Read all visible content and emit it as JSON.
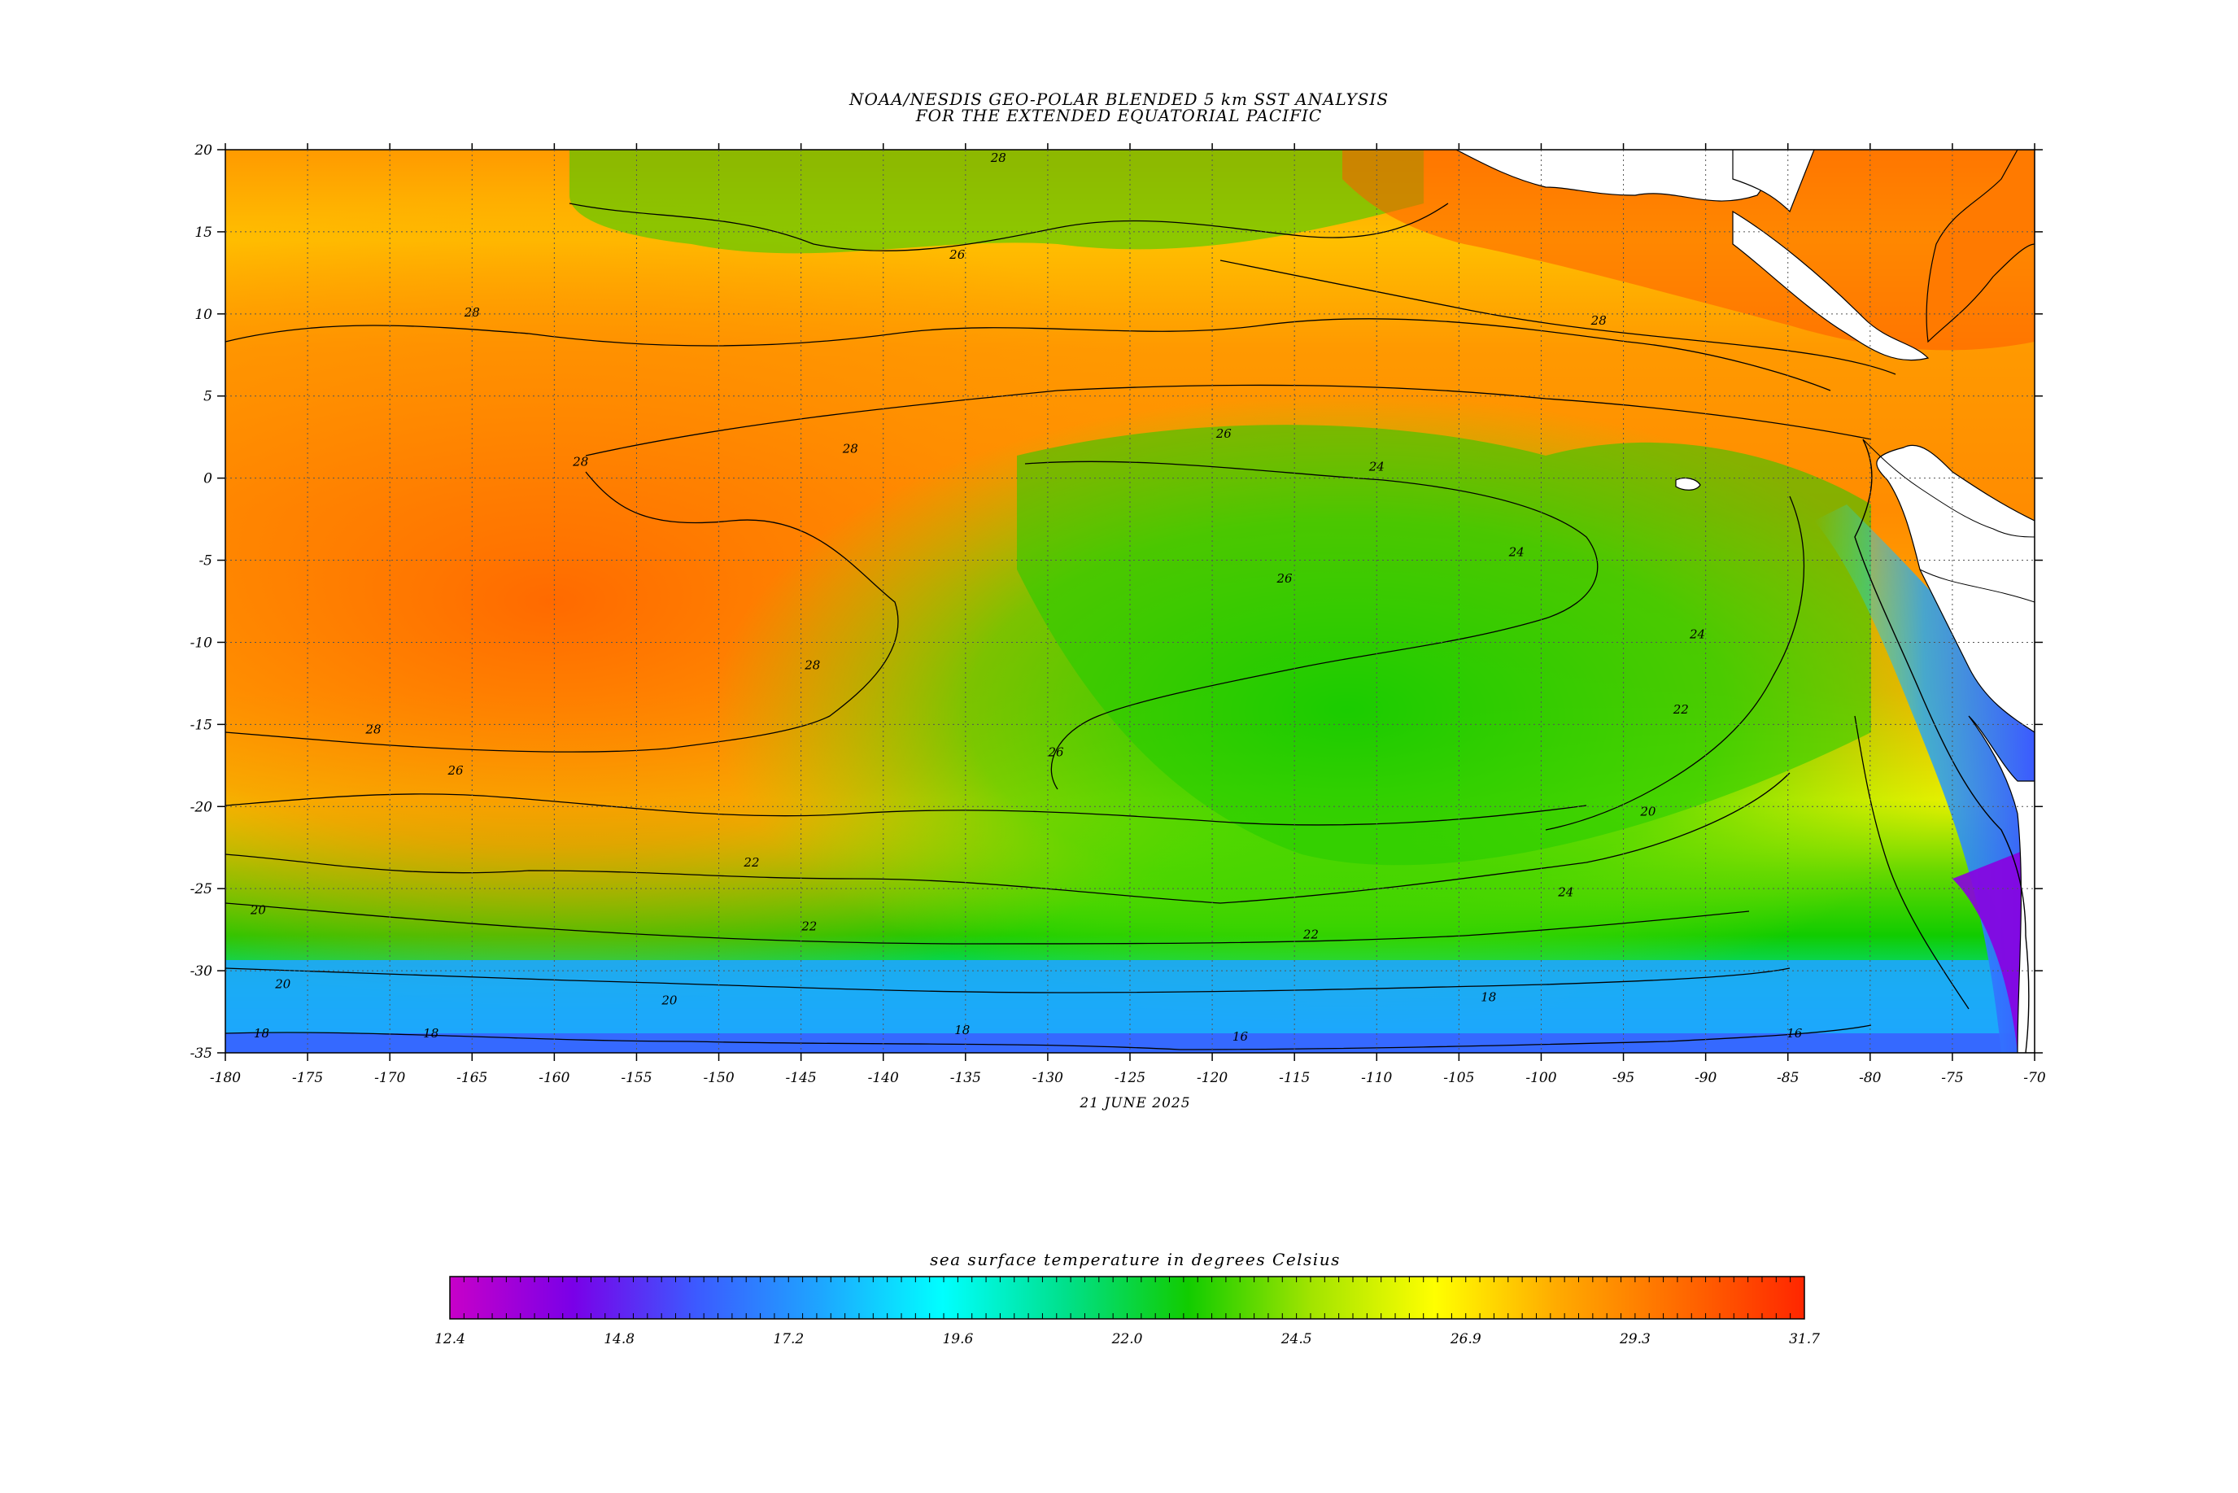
{
  "title_line1": "NOAA/NESDIS GEO-POLAR BLENDED 5 km SST ANALYSIS",
  "title_line2": "FOR THE EXTENDED EQUATORIAL PACIFIC",
  "date": "21 JUNE 2025",
  "colorbar": {
    "title": "sea surface temperature in degrees Celsius",
    "ticks": [
      "12.4",
      "14.8",
      "17.2",
      "19.6",
      "22.0",
      "24.5",
      "26.9",
      "29.3",
      "31.7"
    ],
    "colors": [
      "#c800c8",
      "#7a00e8",
      "#3c5aff",
      "#1ea5ff",
      "#00ffff",
      "#00e08a",
      "#11cc00",
      "#a2e400",
      "#ffff00",
      "#ffaa00",
      "#ff6a00",
      "#ff2600"
    ]
  },
  "map": {
    "lon_range": [
      -180,
      -70
    ],
    "lat_range": [
      -35,
      20
    ],
    "x_ticks": [
      "-180",
      "-175",
      "-170",
      "-165",
      "-160",
      "-155",
      "-150",
      "-145",
      "-140",
      "-135",
      "-130",
      "-125",
      "-120",
      "-115",
      "-110",
      "-105",
      "-100",
      "-95",
      "-90",
      "-85",
      "-80",
      "-75",
      "-70"
    ],
    "y_ticks": [
      "20",
      "15",
      "10",
      "5",
      "0",
      "-5",
      "-10",
      "-15",
      "-20",
      "-25",
      "-30",
      "-35"
    ],
    "contour_labels": [
      "28",
      "28",
      "28",
      "28",
      "28",
      "28",
      "28",
      "26",
      "26",
      "26",
      "26",
      "26",
      "24",
      "24",
      "24",
      "24",
      "22",
      "22",
      "22",
      "22",
      "20",
      "20",
      "20",
      "20",
      "18",
      "18",
      "18",
      "18",
      "16",
      "16"
    ]
  }
}
